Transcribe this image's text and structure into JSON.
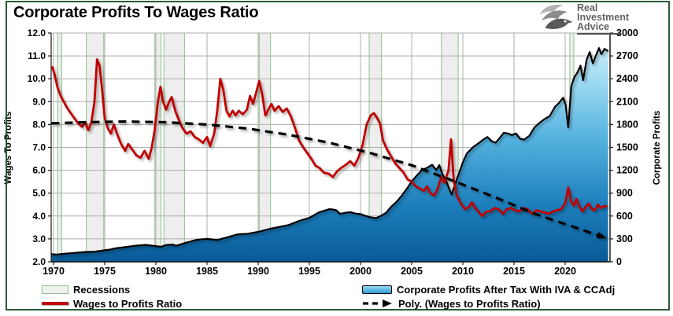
{
  "title": "Corporate Profits To Wages Ratio",
  "logo": {
    "line1": "Real",
    "line2": "Investment",
    "line3": "Advice"
  },
  "legend": [
    {
      "label": "Recessions",
      "swatch": "recession-box"
    },
    {
      "label": "Wages to Profits Ratio",
      "swatch": "red-line"
    },
    {
      "label": "Corporate Profits After Tax With IVA & CCAdj",
      "swatch": "blue-box"
    },
    {
      "label": "Poly. (Wages to Profits Ratio)",
      "swatch": "dashed-arrow"
    }
  ],
  "chart_data": {
    "type": "combo",
    "title": "Corporate Profits To Wages Ratio",
    "x_axis": {
      "min": 1969.75,
      "max": 2024.4,
      "tick_values": [
        1970,
        1975,
        1980,
        1985,
        1990,
        1995,
        2000,
        2005,
        2010,
        2015,
        2020
      ],
      "tick_labels": [
        "1970",
        "1975",
        "1980",
        "1985",
        "1990",
        "1995",
        "2000",
        "2005",
        "2010",
        "2015",
        "2020"
      ]
    },
    "left_axis": {
      "title": "Wages To Profits",
      "min": 2,
      "max": 12,
      "tick_values": [
        2,
        3,
        4,
        5,
        6,
        7,
        8,
        9,
        10,
        11,
        12
      ],
      "tick_labels": [
        "2.0",
        "3.0",
        "4.0",
        "5.0",
        "6.0",
        "7.0",
        "8.0",
        "9.0",
        "10.0",
        "11.0",
        "12.0"
      ]
    },
    "right_axis": {
      "title": "Corporate Profits",
      "min": 0,
      "max": 3000,
      "tick_values": [
        0,
        300,
        600,
        900,
        1200,
        1500,
        1800,
        2100,
        2400,
        2700,
        3000
      ],
      "tick_labels": [
        "0",
        "300",
        "600",
        "900",
        "1200",
        "1500",
        "1800",
        "2100",
        "2400",
        "2700",
        "3000"
      ]
    },
    "recessions": [
      [
        1970.4,
        1970.8
      ],
      [
        1973.2,
        1974.9
      ],
      [
        1979.9,
        1980.5
      ],
      [
        1980.8,
        1982.8
      ],
      [
        1990.1,
        1991.2
      ],
      [
        2000.85,
        2002.05
      ],
      [
        2007.9,
        2009.55
      ],
      [
        2020.45,
        2020.85
      ]
    ],
    "colors": {
      "red_line": "#C00000",
      "poly_line": "#000000",
      "area_outline": "#000000",
      "area_fill_top": "#D6F1FC",
      "area_fill_mid": "#57B4E0",
      "area_fill_bottom": "#085A97",
      "gridline": "#ADADAD",
      "recession_fill": "#ECECEC",
      "recession_border": "#9CCB9C",
      "frame_border": "#2B5B38",
      "axis_dark": "#1a1a1a"
    },
    "series": [
      {
        "name": "Corporate Profits After Tax With IVA & CCAdj",
        "type": "area",
        "axis": "right",
        "points": [
          [
            1969.8,
            100
          ],
          [
            1970.3,
            95
          ],
          [
            1971,
            105
          ],
          [
            1972,
            115
          ],
          [
            1973,
            128
          ],
          [
            1974,
            132
          ],
          [
            1975,
            150
          ],
          [
            1975.6,
            162
          ],
          [
            1976,
            175
          ],
          [
            1977,
            192
          ],
          [
            1978,
            210
          ],
          [
            1979,
            222
          ],
          [
            1980,
            205
          ],
          [
            1980.5,
            196
          ],
          [
            1981,
            220
          ],
          [
            1981.6,
            226
          ],
          [
            1982,
            210
          ],
          [
            1983,
            252
          ],
          [
            1984,
            288
          ],
          [
            1984.6,
            296
          ],
          [
            1985,
            300
          ],
          [
            1986,
            286
          ],
          [
            1987,
            322
          ],
          [
            1988,
            360
          ],
          [
            1989,
            368
          ],
          [
            1990,
            392
          ],
          [
            1991,
            428
          ],
          [
            1992,
            456
          ],
          [
            1993,
            482
          ],
          [
            1994,
            536
          ],
          [
            1995,
            576
          ],
          [
            1996,
            652
          ],
          [
            1997,
            692
          ],
          [
            1997.6,
            678
          ],
          [
            1998,
            628
          ],
          [
            1998.5,
            642
          ],
          [
            1999,
            652
          ],
          [
            1999.5,
            632
          ],
          [
            2000,
            626
          ],
          [
            2000.5,
            602
          ],
          [
            2001,
            582
          ],
          [
            2001.5,
            572
          ],
          [
            2002,
            602
          ],
          [
            2002.5,
            642
          ],
          [
            2003,
            722
          ],
          [
            2003.5,
            782
          ],
          [
            2004,
            862
          ],
          [
            2004.5,
            952
          ],
          [
            2005,
            1052
          ],
          [
            2005.5,
            1132
          ],
          [
            2006,
            1202
          ],
          [
            2006.5,
            1232
          ],
          [
            2007,
            1272
          ],
          [
            2007.4,
            1202
          ],
          [
            2007.7,
            1268
          ],
          [
            2008,
            1152
          ],
          [
            2008.4,
            1048
          ],
          [
            2008.9,
            882
          ],
          [
            2009.2,
            1002
          ],
          [
            2009.6,
            1152
          ],
          [
            2010,
            1302
          ],
          [
            2010.4,
            1422
          ],
          [
            2011,
            1502
          ],
          [
            2011.5,
            1552
          ],
          [
            2012,
            1602
          ],
          [
            2012.4,
            1636
          ],
          [
            2012.8,
            1582
          ],
          [
            2013.2,
            1562
          ],
          [
            2013.6,
            1622
          ],
          [
            2014,
            1692
          ],
          [
            2014.4,
            1682
          ],
          [
            2014.8,
            1662
          ],
          [
            2015.2,
            1682
          ],
          [
            2015.6,
            1612
          ],
          [
            2016,
            1602
          ],
          [
            2016.5,
            1652
          ],
          [
            2017,
            1762
          ],
          [
            2017.5,
            1822
          ],
          [
            2018,
            1872
          ],
          [
            2018.5,
            1912
          ],
          [
            2019,
            2032
          ],
          [
            2019.4,
            2082
          ],
          [
            2019.8,
            2152
          ],
          [
            2020.05,
            2062
          ],
          [
            2020.3,
            1762
          ],
          [
            2020.6,
            2302
          ],
          [
            2020.9,
            2422
          ],
          [
            2021.2,
            2482
          ],
          [
            2021.5,
            2572
          ],
          [
            2021.75,
            2382
          ],
          [
            2022.1,
            2652
          ],
          [
            2022.4,
            2752
          ],
          [
            2022.7,
            2602
          ],
          [
            2023,
            2702
          ],
          [
            2023.3,
            2802
          ],
          [
            2023.55,
            2722
          ],
          [
            2023.85,
            2792
          ],
          [
            2024.2,
            2762
          ]
        ]
      },
      {
        "name": "Wages to Profits Ratio",
        "type": "line",
        "axis": "left",
        "points": [
          [
            1969.85,
            10.55
          ],
          [
            1970.1,
            10.2
          ],
          [
            1970.4,
            9.6
          ],
          [
            1970.7,
            9.25
          ],
          [
            1971,
            9.0
          ],
          [
            1971.3,
            8.75
          ],
          [
            1971.6,
            8.55
          ],
          [
            1972,
            8.3
          ],
          [
            1972.4,
            8.05
          ],
          [
            1972.8,
            7.9
          ],
          [
            1973.1,
            8.1
          ],
          [
            1973.4,
            7.75
          ],
          [
            1973.7,
            8.1
          ],
          [
            1974,
            9.0
          ],
          [
            1974.25,
            10.85
          ],
          [
            1974.5,
            10.55
          ],
          [
            1974.75,
            9.5
          ],
          [
            1975,
            8.3
          ],
          [
            1975.3,
            7.85
          ],
          [
            1975.6,
            7.6
          ],
          [
            1975.9,
            8.0
          ],
          [
            1976.2,
            7.6
          ],
          [
            1976.6,
            7.15
          ],
          [
            1977,
            6.85
          ],
          [
            1977.3,
            7.15
          ],
          [
            1977.7,
            6.9
          ],
          [
            1978.1,
            6.65
          ],
          [
            1978.5,
            6.55
          ],
          [
            1978.9,
            6.85
          ],
          [
            1979.3,
            6.5
          ],
          [
            1979.6,
            7.0
          ],
          [
            1979.9,
            7.8
          ],
          [
            1980.2,
            9.0
          ],
          [
            1980.45,
            9.65
          ],
          [
            1980.7,
            9.0
          ],
          [
            1981,
            8.65
          ],
          [
            1981.3,
            9.0
          ],
          [
            1981.55,
            9.2
          ],
          [
            1981.9,
            8.6
          ],
          [
            1982.2,
            8.25
          ],
          [
            1982.6,
            7.85
          ],
          [
            1983,
            7.6
          ],
          [
            1983.4,
            7.7
          ],
          [
            1983.8,
            7.45
          ],
          [
            1984.2,
            7.35
          ],
          [
            1984.6,
            7.2
          ],
          [
            1985,
            7.45
          ],
          [
            1985.3,
            7.05
          ],
          [
            1985.7,
            7.6
          ],
          [
            1986,
            8.6
          ],
          [
            1986.3,
            10.0
          ],
          [
            1986.6,
            9.5
          ],
          [
            1986.9,
            8.6
          ],
          [
            1987.2,
            8.35
          ],
          [
            1987.5,
            8.6
          ],
          [
            1987.8,
            8.4
          ],
          [
            1988.1,
            8.6
          ],
          [
            1988.5,
            8.45
          ],
          [
            1988.9,
            8.65
          ],
          [
            1989.2,
            9.25
          ],
          [
            1989.5,
            8.9
          ],
          [
            1989.8,
            9.4
          ],
          [
            1990.1,
            9.9
          ],
          [
            1990.4,
            9.3
          ],
          [
            1990.7,
            8.4
          ],
          [
            1991,
            8.65
          ],
          [
            1991.3,
            8.9
          ],
          [
            1991.6,
            8.6
          ],
          [
            1992,
            8.8
          ],
          [
            1992.4,
            8.55
          ],
          [
            1992.8,
            8.7
          ],
          [
            1993.2,
            8.35
          ],
          [
            1993.6,
            7.85
          ],
          [
            1994,
            7.3
          ],
          [
            1994.4,
            7.0
          ],
          [
            1994.8,
            6.75
          ],
          [
            1995.2,
            6.5
          ],
          [
            1995.6,
            6.2
          ],
          [
            1996,
            6.1
          ],
          [
            1996.4,
            5.9
          ],
          [
            1996.9,
            5.85
          ],
          [
            1997.3,
            5.7
          ],
          [
            1997.7,
            5.95
          ],
          [
            1998.1,
            6.1
          ],
          [
            1998.6,
            6.25
          ],
          [
            1999,
            6.4
          ],
          [
            1999.4,
            6.2
          ],
          [
            1999.8,
            6.55
          ],
          [
            2000.2,
            7.1
          ],
          [
            2000.6,
            8.0
          ],
          [
            2001,
            8.4
          ],
          [
            2001.3,
            8.5
          ],
          [
            2001.6,
            8.3
          ],
          [
            2001.9,
            8.05
          ],
          [
            2002.2,
            7.3
          ],
          [
            2002.6,
            6.9
          ],
          [
            2003,
            6.6
          ],
          [
            2003.4,
            6.3
          ],
          [
            2003.8,
            6.1
          ],
          [
            2004.2,
            5.9
          ],
          [
            2004.6,
            5.6
          ],
          [
            2005,
            5.5
          ],
          [
            2005.4,
            5.3
          ],
          [
            2005.8,
            5.2
          ],
          [
            2006.2,
            5.1
          ],
          [
            2006.5,
            5.3
          ],
          [
            2006.8,
            5.0
          ],
          [
            2007.2,
            4.9
          ],
          [
            2007.5,
            5.15
          ],
          [
            2007.9,
            5.7
          ],
          [
            2008.2,
            5.45
          ],
          [
            2008.6,
            6.0
          ],
          [
            2008.85,
            7.35
          ],
          [
            2009.1,
            5.6
          ],
          [
            2009.4,
            4.9
          ],
          [
            2009.8,
            4.55
          ],
          [
            2010.2,
            4.3
          ],
          [
            2010.6,
            4.4
          ],
          [
            2010.9,
            4.6
          ],
          [
            2011.2,
            4.35
          ],
          [
            2011.6,
            4.15
          ],
          [
            2011.9,
            4.0
          ],
          [
            2012.3,
            4.2
          ],
          [
            2012.7,
            4.2
          ],
          [
            2013.1,
            4.35
          ],
          [
            2013.5,
            4.3
          ],
          [
            2013.9,
            4.1
          ],
          [
            2014.3,
            4.3
          ],
          [
            2014.7,
            4.35
          ],
          [
            2015.1,
            4.25
          ],
          [
            2015.5,
            4.2
          ],
          [
            2015.9,
            4.35
          ],
          [
            2016.3,
            4.3
          ],
          [
            2016.8,
            4.1
          ],
          [
            2017.2,
            4.25
          ],
          [
            2017.6,
            4.2
          ],
          [
            2018,
            4.15
          ],
          [
            2018.4,
            4.1
          ],
          [
            2018.8,
            4.2
          ],
          [
            2019.2,
            4.25
          ],
          [
            2019.6,
            4.3
          ],
          [
            2020,
            4.55
          ],
          [
            2020.3,
            5.25
          ],
          [
            2020.6,
            4.6
          ],
          [
            2020.85,
            4.45
          ],
          [
            2021.1,
            4.75
          ],
          [
            2021.4,
            4.4
          ],
          [
            2021.7,
            4.2
          ],
          [
            2022,
            4.4
          ],
          [
            2022.3,
            4.55
          ],
          [
            2022.6,
            4.3
          ],
          [
            2022.9,
            4.25
          ],
          [
            2023.2,
            4.5
          ],
          [
            2023.5,
            4.35
          ],
          [
            2023.9,
            4.45
          ],
          [
            2024.1,
            4.4
          ]
        ]
      },
      {
        "name": "Poly. (Wages to Profits Ratio)",
        "type": "trend_dashed_arrow",
        "axis": "left",
        "points": [
          [
            1969.8,
            8.05
          ],
          [
            1973,
            8.1
          ],
          [
            1977,
            8.13
          ],
          [
            1981,
            8.1
          ],
          [
            1985,
            8.0
          ],
          [
            1989,
            7.82
          ],
          [
            1993,
            7.55
          ],
          [
            1997,
            7.2
          ],
          [
            2001,
            6.75
          ],
          [
            2005,
            6.22
          ],
          [
            2009,
            5.55
          ],
          [
            2013,
            4.85
          ],
          [
            2017,
            4.1
          ],
          [
            2021,
            3.5
          ],
          [
            2023.9,
            3.05
          ]
        ]
      }
    ]
  }
}
